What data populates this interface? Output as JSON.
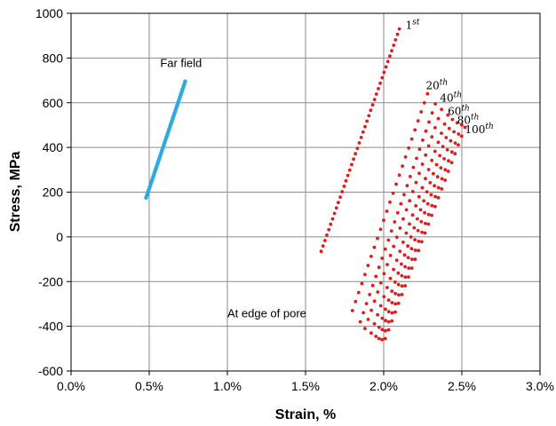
{
  "chart_data": {
    "type": "scatter",
    "title": "",
    "xlabel": "Strain, %",
    "ylabel": "Stress, MPa",
    "xlim": [
      0.0,
      3.0
    ],
    "ylim": [
      -600,
      1000
    ],
    "grid": true,
    "x_ticks": [
      "0.0%",
      "0.5%",
      "1.0%",
      "1.5%",
      "2.0%",
      "2.5%",
      "3.0%"
    ],
    "y_ticks": [
      "-600",
      "-400",
      "-200",
      "0",
      "200",
      "400",
      "600",
      "800",
      "1000"
    ],
    "colors": {
      "far_field": "#2aa8e0",
      "pore_edge": "#e31a1c"
    },
    "annotations": [
      {
        "text": "Far field",
        "x": 0.57,
        "y": 760
      },
      {
        "text": "At edge of pore",
        "x": 1.0,
        "y": -360
      }
    ],
    "cycle_labels": [
      {
        "base": "1",
        "sup": "st",
        "x": 2.14,
        "y": 930
      },
      {
        "base": "20",
        "sup": "th",
        "x": 2.27,
        "y": 660
      },
      {
        "base": "40",
        "sup": "th",
        "x": 2.36,
        "y": 605
      },
      {
        "base": "60",
        "sup": "th",
        "x": 2.41,
        "y": 545
      },
      {
        "base": "80",
        "sup": "th",
        "x": 2.47,
        "y": 505
      },
      {
        "base": "100",
        "sup": "th",
        "x": 2.52,
        "y": 465
      }
    ],
    "series": [
      {
        "segments": [
          {
            "x1": 0.48,
            "y1": 175,
            "x2": 0.73,
            "y2": 695,
            "n": 45
          }
        ]
      },
      {
        "segments": [
          {
            "x1": 1.6,
            "y1": -65,
            "x2": 2.1,
            "y2": 930,
            "n": 42
          },
          {
            "x1": 1.8,
            "y1": -330,
            "x2": 2.28,
            "y2": 640,
            "n": 25
          },
          {
            "x1": 1.85,
            "y1": -380,
            "x2": 2.33,
            "y2": 595,
            "n": 25
          },
          {
            "x1": 1.88,
            "y1": -410,
            "x2": 2.37,
            "y2": 570,
            "n": 25
          },
          {
            "x1": 1.92,
            "y1": -430,
            "x2": 2.41,
            "y2": 545,
            "n": 25
          },
          {
            "x1": 1.95,
            "y1": -445,
            "x2": 2.44,
            "y2": 525,
            "n": 25
          },
          {
            "x1": 1.97,
            "y1": -455,
            "x2": 2.47,
            "y2": 510,
            "n": 25
          },
          {
            "x1": 1.99,
            "y1": -460,
            "x2": 2.5,
            "y2": 500,
            "n": 25
          },
          {
            "x1": 2.01,
            "y1": -455,
            "x2": 2.52,
            "y2": 490,
            "n": 25
          }
        ]
      }
    ]
  }
}
